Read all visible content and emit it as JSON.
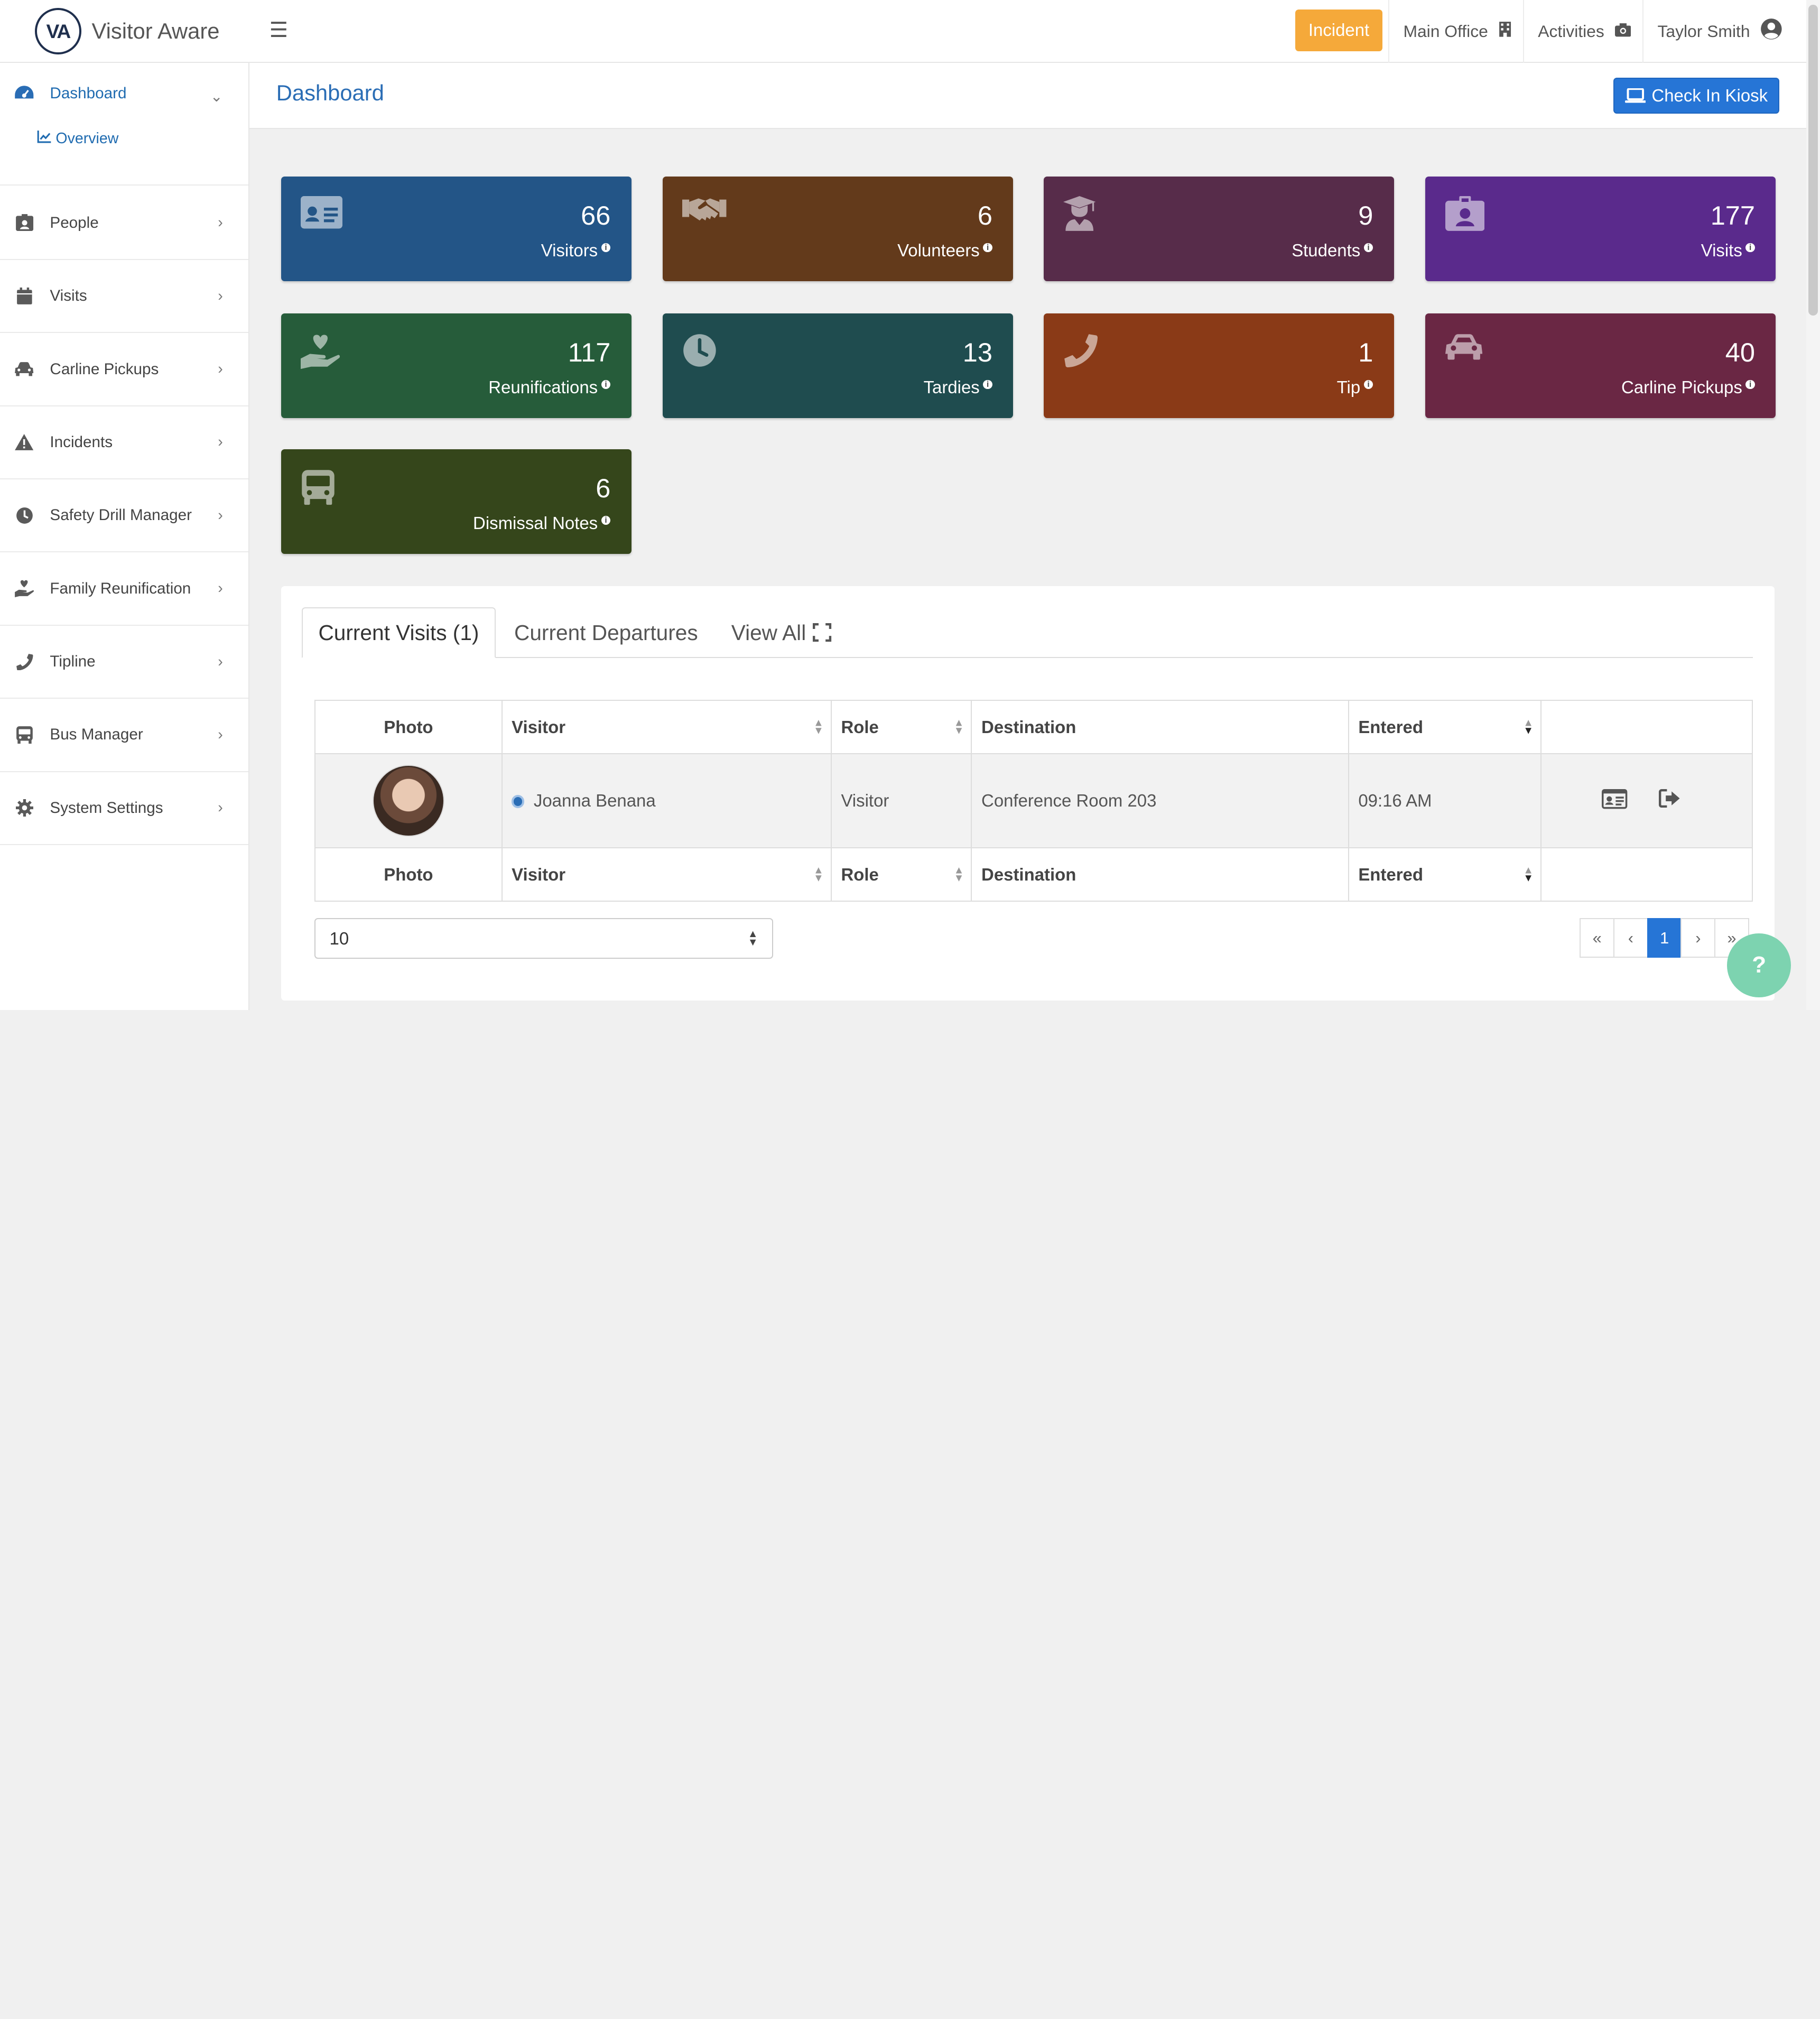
{
  "brand": {
    "logo_text": "VA",
    "name": "Visitor Aware"
  },
  "topbar": {
    "incident_label": "Incident",
    "location_label": "Main Office",
    "activities_label": "Activities",
    "user_name": "Taylor Smith"
  },
  "sidebar": {
    "items": [
      {
        "label": "Dashboard",
        "icon": "dashboard-icon"
      },
      {
        "label": "People",
        "icon": "id-badge-icon"
      },
      {
        "label": "Visits",
        "icon": "calendar-icon"
      },
      {
        "label": "Carline Pickups",
        "icon": "car-icon"
      },
      {
        "label": "Incidents",
        "icon": "warning-icon"
      },
      {
        "label": "Safety Drill Manager",
        "icon": "clock-icon"
      },
      {
        "label": "Family Reunification",
        "icon": "hand-heart-icon"
      },
      {
        "label": "Tipline",
        "icon": "phone-icon"
      },
      {
        "label": "Bus Manager",
        "icon": "bus-icon"
      },
      {
        "label": "System Settings",
        "icon": "gear-icon"
      }
    ],
    "sub_overview": "Overview"
  },
  "header": {
    "title": "Dashboard",
    "kiosk_label": "Check In Kiosk"
  },
  "cards": [
    {
      "value": "66",
      "label": "Visitors",
      "color": "#235587",
      "icon": "id-card-icon"
    },
    {
      "value": "6",
      "label": "Volunteers",
      "color": "#633a1b",
      "icon": "handshake-icon"
    },
    {
      "value": "9",
      "label": "Students",
      "color": "#572c4a",
      "icon": "graduate-icon"
    },
    {
      "value": "177",
      "label": "Visits",
      "color": "#5a2a8c",
      "icon": "id-badge-icon"
    },
    {
      "value": "117",
      "label": "Reunifications",
      "color": "#265c3a",
      "icon": "hand-heart-icon"
    },
    {
      "value": "13",
      "label": "Tardies",
      "color": "#1f4c4f",
      "icon": "clock-icon"
    },
    {
      "value": "1",
      "label": "Tip",
      "color": "#8a3a17",
      "icon": "phone-icon"
    },
    {
      "value": "40",
      "label": "Carline Pickups",
      "color": "#6a2744",
      "icon": "car-icon"
    },
    {
      "value": "6",
      "label": "Dismissal Notes",
      "color": "#35461b",
      "icon": "bus-icon"
    }
  ],
  "tabs": {
    "current": "Current Visits (1)",
    "departures": "Current Departures",
    "view_all": "View All"
  },
  "table": {
    "columns": [
      "Photo",
      "Visitor",
      "Role",
      "Destination",
      "Entered"
    ],
    "rows": [
      {
        "visitor": "Joanna Benana",
        "role": "Visitor",
        "destination": "Conference Room 203",
        "entered": "09:16 AM"
      }
    ]
  },
  "pagination": {
    "page_size": "10",
    "first": "«",
    "prev": "‹",
    "current": "1",
    "next": "›",
    "last": "»"
  },
  "help_label": "?"
}
